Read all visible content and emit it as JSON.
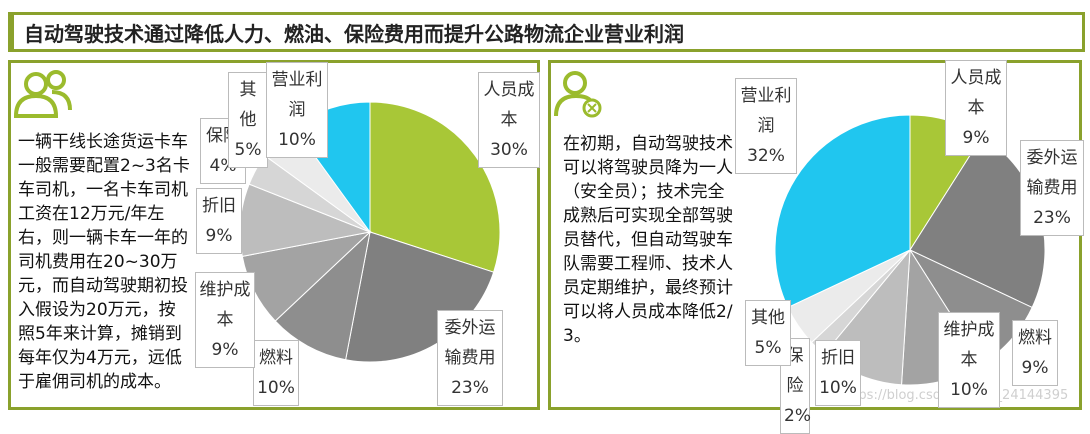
{
  "title": "自动驾驶技术通过降低人力、燃油、保险费用而提升公路物流企业营业利润",
  "panels": [
    {
      "text": "一辆干线长途货运卡车一般需要配置2~3名卡车司机，一名卡车司机工资在12万元/年左右，则一辆卡车一年的司机费用在20~30万元，而自动驾驶期初投入假设为20万元，按照5年来计算，摊销到每年仅为4万元，远低于雇佣司机的成本。"
    },
    {
      "text": "在初期，自动驾驶技术可以将驾驶员降为一人（安全员）；技术完全成熟后可实现全部驾驶员替代，但自动驾驶车队需要工程师、技术人员定期维护，最终预计可以将人员成本降低2/3。"
    }
  ],
  "watermark": "https://blog.csdn.net/qq_24144395",
  "chart_data": [
    {
      "type": "pie",
      "categories": [
        "人员成本",
        "委外运输费用",
        "燃料",
        "维护成本",
        "折旧",
        "保险",
        "其他",
        "营业利润"
      ],
      "values": [
        30,
        23,
        10,
        9,
        9,
        4,
        5,
        10
      ],
      "value_labels": [
        "30%",
        "23%",
        "10%",
        "9%",
        "9%",
        "4%",
        "5%",
        "10%"
      ],
      "colors": [
        "#a8c737",
        "#808080",
        "#8e8e8e",
        "#a3a3a3",
        "#bdbdbd",
        "#d6d6d6",
        "#ebebeb",
        "#20c6ef"
      ]
    },
    {
      "type": "pie",
      "categories": [
        "人员成本",
        "委外运输费用",
        "燃料",
        "维护成本",
        "折旧",
        "保险",
        "其他",
        "营业利润"
      ],
      "values": [
        9,
        23,
        9,
        10,
        10,
        2,
        5,
        32
      ],
      "value_labels": [
        "9%",
        "23%",
        "9%",
        "10%",
        "10%",
        "2%",
        "5%",
        "32%"
      ],
      "colors": [
        "#a8c737",
        "#808080",
        "#8e8e8e",
        "#a3a3a3",
        "#bdbdbd",
        "#d6d6d6",
        "#ebebeb",
        "#20c6ef"
      ]
    }
  ]
}
